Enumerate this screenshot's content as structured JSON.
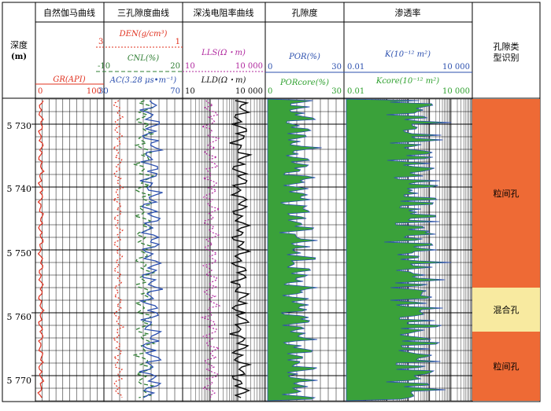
{
  "depth_header": {
    "title": "深度",
    "unit": "(m)"
  },
  "tracks": [
    {
      "id": "gr",
      "title": "自然伽马曲线",
      "curves": [
        {
          "label": "GR(API)",
          "min": "0",
          "max": "100",
          "color": "#e0301e"
        }
      ]
    },
    {
      "id": "porosity3",
      "title": "三孔隙度曲线",
      "curves": [
        {
          "label": "DEN(g/cm³)",
          "min": "3",
          "max": "1",
          "color": "#e0301e",
          "dash": "dotted"
        },
        {
          "label": "CNL(%)",
          "min": "-10",
          "max": "20",
          "color": "#2e7d32",
          "dash": "dashed"
        },
        {
          "label": "AC(3.28 μs•m⁻¹)",
          "min": "30",
          "max": "70",
          "color": "#2b4fae",
          "dash": "solid"
        }
      ]
    },
    {
      "id": "resist",
      "title": "深浅电阻率曲线",
      "curves": [
        {
          "label": "LLS(Ω・m)",
          "min": "10",
          "max": "10 000",
          "color": "#b0279e",
          "dash": "dotted"
        },
        {
          "label": "LLD(Ω・m)",
          "min": "10",
          "max": "10 000",
          "color": "#111111",
          "dash": "solid"
        }
      ]
    },
    {
      "id": "por",
      "title": "孔隙度",
      "curves": [
        {
          "label": "POR(%)",
          "min": "0",
          "max": "30",
          "color": "#2b4fae"
        },
        {
          "label": "PORcore(%)",
          "min": "0",
          "max": "30",
          "color": "#2ea02e"
        }
      ]
    },
    {
      "id": "perm",
      "title": "渗透率",
      "curves": [
        {
          "label": "K(10⁻¹² m²)",
          "min": "0.01",
          "max": "10 000",
          "color": "#2b4fae"
        },
        {
          "label": "Kcore(10⁻¹² m²)",
          "min": "0.01",
          "max": "10 000",
          "color": "#2ea02e"
        }
      ]
    },
    {
      "id": "pore",
      "title": "孔隙类型识别"
    }
  ],
  "depth_ticks": [
    "5 730",
    "5 740",
    "5 750",
    "5 760",
    "5 770"
  ],
  "depth_range": [
    5726,
    5774
  ],
  "pore_zones": [
    {
      "label": "粒间孔",
      "top": 5726,
      "bottom": 5756,
      "color": "#ee6a35"
    },
    {
      "label": "混合孔",
      "top": 5756,
      "bottom": 5763,
      "color": "#f8eaa0"
    },
    {
      "label": "粒间孔",
      "top": 5763,
      "bottom": 5774,
      "color": "#ee6a35"
    }
  ]
}
